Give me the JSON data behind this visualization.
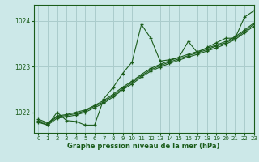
{
  "background_color": "#cce8e8",
  "grid_color": "#aacccc",
  "line_color": "#1a5c1a",
  "text_color": "#1a5c1a",
  "xlabel": "Graphe pression niveau de la mer (hPa)",
  "xlim": [
    -0.5,
    23
  ],
  "ylim": [
    1021.55,
    1024.35
  ],
  "yticks": [
    1022,
    1023,
    1024
  ],
  "xticks": [
    0,
    1,
    2,
    3,
    4,
    5,
    6,
    7,
    8,
    9,
    10,
    11,
    12,
    13,
    14,
    15,
    16,
    17,
    18,
    19,
    20,
    21,
    22,
    23
  ],
  "series_volatile": [
    1021.8,
    1021.72,
    1022.0,
    1021.82,
    1021.8,
    1021.72,
    1021.72,
    1022.3,
    1022.55,
    1022.85,
    1023.1,
    1023.92,
    1023.62,
    1023.12,
    1023.15,
    1023.2,
    1023.55,
    1023.3,
    1023.42,
    1023.52,
    1023.62,
    1023.62,
    1024.08,
    1024.22
  ],
  "smooth1": [
    1021.82,
    1021.75,
    1021.9,
    1021.93,
    1021.97,
    1022.03,
    1022.13,
    1022.23,
    1022.37,
    1022.52,
    1022.65,
    1022.8,
    1022.93,
    1023.02,
    1023.1,
    1023.17,
    1023.24,
    1023.3,
    1023.37,
    1023.45,
    1023.52,
    1023.62,
    1023.77,
    1023.92
  ],
  "smooth2": [
    1021.85,
    1021.77,
    1021.92,
    1021.95,
    1022.0,
    1022.05,
    1022.15,
    1022.26,
    1022.4,
    1022.55,
    1022.68,
    1022.83,
    1022.96,
    1023.05,
    1023.13,
    1023.2,
    1023.27,
    1023.33,
    1023.4,
    1023.47,
    1023.55,
    1023.65,
    1023.8,
    1023.95
  ],
  "smooth3": [
    1021.78,
    1021.72,
    1021.87,
    1021.9,
    1021.94,
    1022.0,
    1022.1,
    1022.2,
    1022.34,
    1022.49,
    1022.62,
    1022.77,
    1022.9,
    1022.99,
    1023.07,
    1023.14,
    1023.21,
    1023.27,
    1023.34,
    1023.41,
    1023.49,
    1023.59,
    1023.74,
    1023.88
  ]
}
